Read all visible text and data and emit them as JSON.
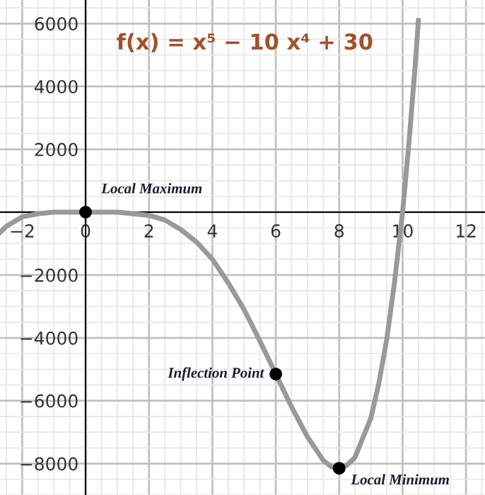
{
  "chart_data": {
    "type": "line",
    "title": "f(x) = x⁵ − 10 x⁴ + 30",
    "series": [
      {
        "color": "#999999",
        "x": [
          -2.7,
          -2.5,
          -2,
          -1.5,
          -1,
          0,
          1,
          2,
          2.5,
          3,
          3.5,
          4,
          4.5,
          5,
          5.5,
          6,
          6.5,
          7,
          7.5,
          7.75,
          8,
          8.25,
          8.5,
          9,
          9.25,
          9.5,
          9.75,
          10,
          10.2,
          10.4,
          10.5
        ],
        "values": [
          -650,
          -450,
          -150,
          -50,
          0,
          0,
          0,
          -100,
          -250,
          -550,
          -950,
          -1500,
          -2250,
          -3100,
          -4100,
          -5150,
          -6200,
          -7150,
          -7900,
          -8100,
          -8150,
          -8050,
          -7800,
          -6550,
          -5450,
          -4050,
          -2200,
          0,
          2200,
          4700,
          6100
        ]
      },
      {
        "type": "scatter",
        "marker": "circle",
        "color": "#000000",
        "x": [
          0,
          6,
          8
        ],
        "values": [
          0,
          -5150,
          -8150
        ]
      }
    ],
    "annotations": [
      {
        "text": "Local Maximum",
        "x": 0,
        "y": 0
      },
      {
        "text": "Inflection Point",
        "x": 6,
        "y": -5150
      },
      {
        "text": "Local Minimum",
        "x": 8,
        "y": -8150
      }
    ],
    "xlim": [
      -2.7,
      12.6
    ],
    "ylim": [
      -9000,
      6750
    ],
    "xticks": [
      -2,
      0,
      2,
      4,
      6,
      8,
      10,
      12
    ],
    "yticks": [
      -8000,
      -6000,
      -4000,
      -2000,
      2000,
      4000,
      6000
    ],
    "grid": true,
    "line_style": "solid"
  }
}
